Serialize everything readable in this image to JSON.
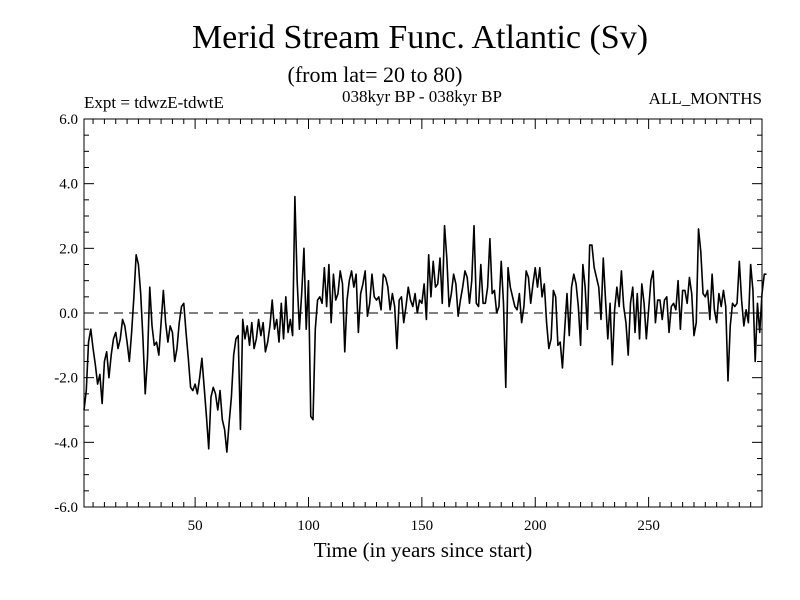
{
  "chart_data": {
    "type": "line",
    "title": "Merid Stream Func. Atlantic (Sv)",
    "subtitle": "(from lat= 20 to 80)",
    "header_left": "Expt = tdwzE-tdwtE",
    "header_center": "038kyr BP - 038kyr BP",
    "header_right": "ALL_MONTHS",
    "xlabel": "Time (in years since start)",
    "ylabel": "",
    "xlim": [
      1,
      300
    ],
    "ylim": [
      -6,
      6
    ],
    "x_ticks": [
      50,
      100,
      150,
      200,
      250
    ],
    "y_ticks": [
      -6,
      -4,
      -2,
      0,
      2,
      4,
      6
    ],
    "x_tick_labels": [
      "50",
      "100",
      "150",
      "200",
      "250"
    ],
    "y_tick_labels": [
      "-6.0",
      "-4.0",
      "-2.0",
      "0.0",
      "2.0",
      "4.0",
      "6.0"
    ],
    "reference_line": {
      "y": 0,
      "style": "dashed"
    },
    "grid": false,
    "series": [
      {
        "values": [
          -3.0,
          -2.4,
          -0.9,
          -0.5,
          -1.1,
          -1.6,
          -2.2,
          -1.9,
          -2.8,
          -1.5,
          -1.2,
          -2.0,
          -1.3,
          -0.8,
          -0.6,
          -1.1,
          -0.8,
          -0.2,
          -0.4,
          -0.9,
          -1.5,
          -0.6,
          0.5,
          1.8,
          1.5,
          0.6,
          -0.8,
          -2.5,
          -1.4,
          0.8,
          -0.4,
          -1.0,
          -0.9,
          -1.3,
          -0.3,
          0.7,
          -0.3,
          -0.9,
          -0.4,
          -0.6,
          -1.5,
          -1.1,
          -0.3,
          0.2,
          0.3,
          -0.6,
          -1.4,
          -2.3,
          -2.4,
          -2.2,
          -2.5,
          -2.0,
          -1.4,
          -2.3,
          -3.2,
          -4.2,
          -2.6,
          -2.3,
          -2.5,
          -3.0,
          -2.4,
          -3.3,
          -3.6,
          -4.3,
          -3.4,
          -2.6,
          -1.3,
          -0.8,
          -0.7,
          -3.6,
          -0.2,
          -0.8,
          -0.4,
          -1.0,
          -0.3,
          -1.1,
          -0.8,
          -0.2,
          -0.7,
          -0.3,
          -1.2,
          -0.9,
          -0.4,
          0.4,
          -0.5,
          -0.2,
          -0.9,
          0.3,
          -0.8,
          0.5,
          -0.6,
          -0.2,
          -0.7,
          3.6,
          1.0,
          -0.5,
          0.6,
          2.0,
          -0.5,
          1.0,
          -3.2,
          -3.3,
          -0.5,
          0.4,
          0.5,
          0.3,
          1.4,
          0.2,
          1.5,
          -0.3,
          1.2,
          0.4,
          0.6,
          1.3,
          0.9,
          -1.2,
          0.4,
          1.0,
          1.3,
          0.8,
          1.2,
          -0.6,
          0.6,
          0.9,
          1.3,
          -0.1,
          0.3,
          1.2,
          0.5,
          0.4,
          0.5,
          0.1,
          1.2,
          1.1,
          0.8,
          0.1,
          0.6,
          0.2,
          -1.1,
          0.4,
          0.5,
          -0.3,
          0.2,
          0.8,
          0.4,
          0.2,
          0.6,
          0.0,
          0.4,
          0.3,
          0.9,
          -0.2,
          1.8,
          0.5,
          1.6,
          0.8,
          0.9,
          1.7,
          0.3,
          2.7,
          1.7,
          0.2,
          0.6,
          1.2,
          0.9,
          -0.1,
          0.4,
          0.8,
          1.3,
          1.1,
          0.3,
          1.0,
          2.7,
          0.3,
          0.2,
          1.5,
          0.3,
          0.3,
          0.8,
          2.3,
          0.6,
          0.7,
          0.0,
          0.2,
          1.6,
          0.3,
          -2.3,
          1.4,
          0.8,
          0.5,
          0.2,
          0.1,
          0.6,
          -0.3,
          0.2,
          1.3,
          1.1,
          0.3,
          0.9,
          1.4,
          0.8,
          1.4,
          0.5,
          0.9,
          -0.3,
          -1.1,
          -0.8,
          0.7,
          0.5,
          -1.0,
          -0.9,
          -1.7,
          -0.5,
          0.6,
          -0.7,
          0.8,
          1.2,
          0.9,
          0.2,
          -1.0,
          1.5,
          0.8,
          -0.5,
          2.1,
          2.1,
          1.4,
          1.1,
          0.8,
          -0.2,
          1.7,
          0.4,
          -0.8,
          0.3,
          -1.6,
          0.1,
          0.8,
          0.2,
          1.3,
          0.2,
          -0.3,
          -1.3,
          0.3,
          0.8,
          -0.6,
          0.6,
          -0.8,
          0.9,
          0.3,
          -0.8,
          0.1,
          1.0,
          1.3,
          -0.3,
          0.4,
          0.4,
          -0.2,
          0.4,
          0.5,
          -0.6,
          0.2,
          0.3,
          0.1,
          1.0,
          -0.5,
          0.7,
          0.7,
          0.3,
          1.1,
          0.6,
          -0.7,
          -0.3,
          2.6,
          1.9,
          0.6,
          0.5,
          0.7,
          -0.2,
          1.2,
          0.1,
          -0.3,
          0.6,
          0.2,
          0.7,
          0.2,
          -2.1,
          -0.4,
          0.3,
          0.2,
          0.3,
          1.6,
          0.4,
          -0.4,
          0.1,
          -0.3,
          1.5,
          0.7,
          -1.5,
          0.3,
          -0.6,
          0.6,
          1.2,
          1.2
        ]
      }
    ]
  }
}
